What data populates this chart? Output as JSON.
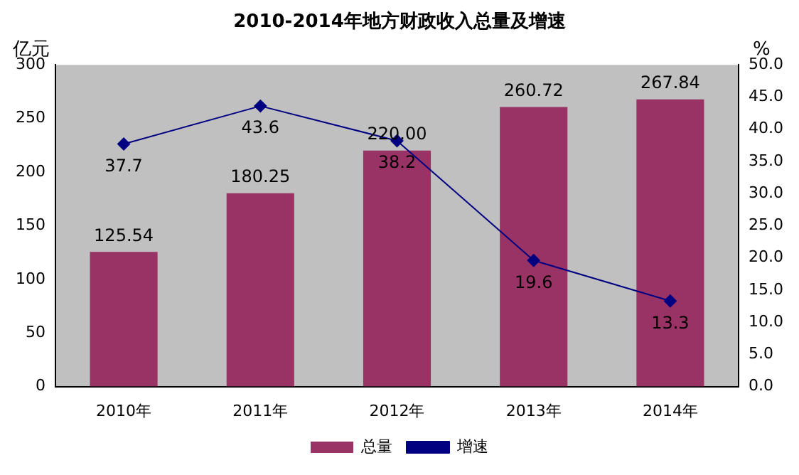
{
  "chart_data": {
    "type": "bar",
    "title": "2010-2014年地方财政收入总量及增速",
    "ylabel": "亿元",
    "y2label": "%",
    "categories": [
      "2010年",
      "2011年",
      "2012年",
      "2013年",
      "2014年"
    ],
    "series": [
      {
        "name": "总量",
        "color": "#993366",
        "values": [
          125.54,
          180.25,
          220.0,
          260.72,
          267.84
        ],
        "value_labels": [
          "125.54",
          "180.25",
          "220.00",
          "260.72",
          "267.84"
        ]
      },
      {
        "name": "增速",
        "type": "line",
        "axis": "y2",
        "color": "#000080",
        "marker": "diamond",
        "values": [
          37.7,
          43.6,
          38.2,
          19.6,
          13.3
        ],
        "value_labels": [
          "37.7",
          "43.6",
          "38.2",
          "19.6",
          "13.3"
        ]
      }
    ],
    "ylim": [
      0,
      300
    ],
    "yticks": [
      0,
      50,
      100,
      150,
      200,
      250,
      300
    ],
    "y2lim": [
      0,
      50
    ],
    "y2ticks": [
      {
        "value": 0,
        "label": "0.0"
      },
      {
        "value": 5,
        "label": "5.0"
      },
      {
        "value": 10,
        "label": "10.0"
      },
      {
        "value": 15,
        "label": "15.0"
      },
      {
        "value": 20,
        "label": "20.0"
      },
      {
        "value": 25,
        "label": "25.0"
      },
      {
        "value": 30,
        "label": "30.0"
      },
      {
        "value": 35,
        "label": "35.0"
      },
      {
        "value": 40,
        "label": "40.0"
      },
      {
        "value": 45,
        "label": "45.0"
      },
      {
        "value": 50,
        "label": "50.0"
      }
    ],
    "grid": false,
    "legend": "bottom"
  }
}
